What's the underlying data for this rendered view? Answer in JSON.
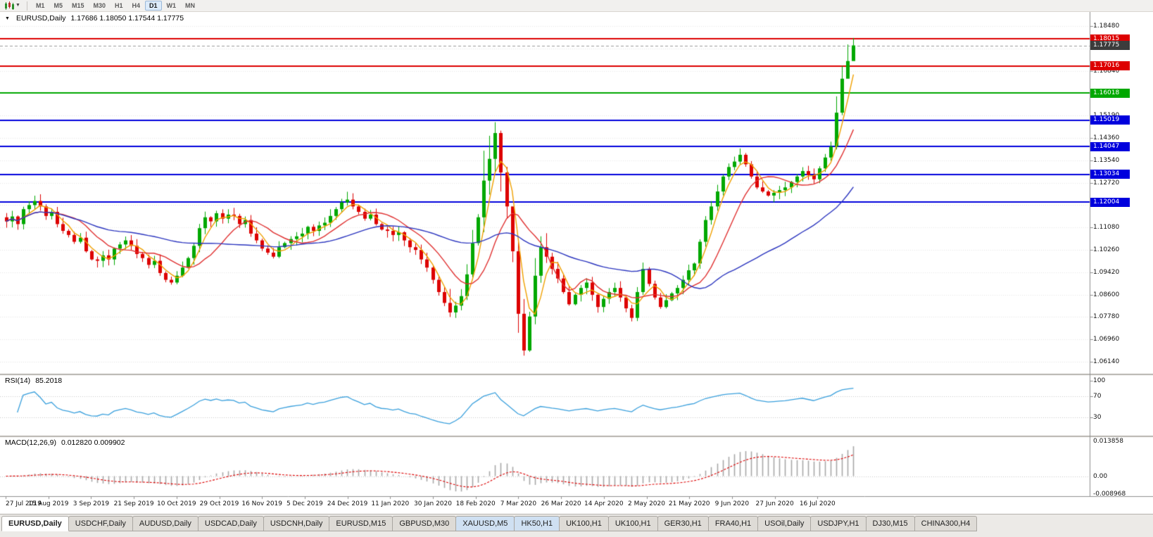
{
  "toolbar": {
    "timeframes": [
      {
        "label": "M1",
        "active": false
      },
      {
        "label": "M5",
        "active": false
      },
      {
        "label": "M15",
        "active": false
      },
      {
        "label": "M30",
        "active": false
      },
      {
        "label": "H1",
        "active": false
      },
      {
        "label": "H4",
        "active": false
      },
      {
        "label": "D1",
        "active": true
      },
      {
        "label": "W1",
        "active": false
      },
      {
        "label": "MN",
        "active": false
      }
    ]
  },
  "main_header": {
    "symbol": "EURUSD,Daily",
    "ohlc": "1.17686 1.18050 1.17544 1.17775"
  },
  "rsi_header": {
    "label": "RSI(14)",
    "value": "85.2018"
  },
  "macd_header": {
    "label": "MACD(12,26,9)",
    "value": "0.012820 0.009902"
  },
  "price_axis": {
    "labels": [
      "1.18480",
      "1.17660",
      "1.16840",
      "1.16020",
      "1.15190",
      "1.14360",
      "1.13540",
      "1.12720",
      "1.11900",
      "1.11080",
      "1.10260",
      "1.09420",
      "1.08600",
      "1.07780",
      "1.06960",
      "1.06140"
    ],
    "badges": [
      {
        "text": "1.18015",
        "value": 1.18015,
        "color": "#dd0000"
      },
      {
        "text": "1.17775",
        "value": 1.17775,
        "color": "#3c3c3c"
      },
      {
        "text": "1.17016",
        "value": 1.17016,
        "color": "#dd0000"
      },
      {
        "text": "1.16018",
        "value": 1.16018,
        "color": "#00a800"
      },
      {
        "text": "1.15019",
        "value": 1.15019,
        "color": "#0000dd"
      },
      {
        "text": "1.14047",
        "value": 1.14047,
        "color": "#0000dd"
      },
      {
        "text": "1.13034",
        "value": 1.13034,
        "color": "#0000dd"
      },
      {
        "text": "1.12004",
        "value": 1.12004,
        "color": "#0000dd"
      }
    ]
  },
  "rsi_axis": [
    "100",
    "70",
    "30"
  ],
  "macd_axis": {
    "top": "0.013858",
    "zero": "0.00",
    "bottom": "-0.008968"
  },
  "date_axis": [
    "27 Jul 2019",
    "15 Aug 2019",
    "3 Sep 2019",
    "21 Sep 2019",
    "10 Oct 2019",
    "29 Oct 2019",
    "16 Nov 2019",
    "5 Dec 2019",
    "24 Dec 2019",
    "11 Jan 2020",
    "30 Jan 2020",
    "18 Feb 2020",
    "7 Mar 2020",
    "26 Mar 2020",
    "14 Apr 2020",
    "2 May 2020",
    "21 May 2020",
    "9 Jun 2020",
    "27 Jun 2020",
    "16 Jul 2020"
  ],
  "tabs": [
    {
      "label": "EURUSD,Daily",
      "active": true
    },
    {
      "label": "USDCHF,Daily"
    },
    {
      "label": "AUDUSD,Daily"
    },
    {
      "label": "USDCAD,Daily"
    },
    {
      "label": "USDCNH,Daily"
    },
    {
      "label": "EURUSD,M15"
    },
    {
      "label": "GBPUSD,M30"
    },
    {
      "label": "XAUUSD,M5",
      "highlighted": true
    },
    {
      "label": "HK50,H1",
      "highlighted": true
    },
    {
      "label": "UK100,H1"
    },
    {
      "label": "UK100,H1"
    },
    {
      "label": "GER30,H1"
    },
    {
      "label": "FRA40,H1"
    },
    {
      "label": "USOil,Daily"
    },
    {
      "label": "USDJPY,H1"
    },
    {
      "label": "DJ30,M15"
    },
    {
      "label": "CHINA300,H4"
    }
  ],
  "chart_data": {
    "type": "candlestick",
    "symbol": "EURUSD",
    "timeframe": "Daily",
    "title": "EURUSD,Daily",
    "x_range": [
      "27 Jul 2019",
      "31 Jul 2020"
    ],
    "y_range": [
      1.0585,
      1.1885
    ],
    "ohlc_current": {
      "open": 1.17686,
      "high": 1.1805,
      "low": 1.17544,
      "close": 1.17775
    },
    "first_open": 1.1145,
    "closes": [
      1.113,
      1.1148,
      1.112,
      1.1175,
      1.119,
      1.1205,
      1.1185,
      1.115,
      1.1165,
      1.112,
      1.1095,
      1.108,
      1.1055,
      1.107,
      1.102,
      1.099,
      1.0985,
      1.1005,
      1.099,
      1.103,
      1.1045,
      1.106,
      1.104,
      1.101,
      1.0995,
      1.097,
      1.0985,
      1.094,
      1.0915,
      1.0905,
      1.093,
      1.096,
      1.0995,
      1.104,
      1.1105,
      1.1145,
      1.113,
      1.116,
      1.114,
      1.1155,
      1.115,
      1.112,
      1.1135,
      1.1085,
      1.106,
      1.103,
      1.1015,
      1.1,
      1.1035,
      1.105,
      1.1065,
      1.1075,
      1.1085,
      1.111,
      1.1095,
      1.1115,
      1.1125,
      1.115,
      1.1175,
      1.12,
      1.121,
      1.1185,
      1.1165,
      1.114,
      1.1155,
      1.112,
      1.11,
      1.1095,
      1.108,
      1.109,
      1.106,
      1.1035,
      1.1025,
      1.099,
      1.096,
      1.0915,
      1.087,
      1.083,
      1.0795,
      1.082,
      1.0855,
      1.0935,
      1.105,
      1.1145,
      1.128,
      1.136,
      1.1455,
      1.131,
      1.1185,
      1.102,
      1.079,
      1.0655,
      1.078,
      1.093,
      1.1035,
      1.1,
      1.0955,
      1.092,
      1.087,
      1.0825,
      1.086,
      1.0885,
      1.0905,
      1.086,
      1.0815,
      1.0845,
      1.087,
      1.0885,
      1.085,
      1.081,
      1.0775,
      1.087,
      1.0955,
      1.09,
      1.085,
      1.0815,
      1.084,
      1.0865,
      1.0885,
      1.0915,
      1.095,
      1.0975,
      1.1055,
      1.1135,
      1.1185,
      1.124,
      1.1295,
      1.133,
      1.135,
      1.1375,
      1.134,
      1.1295,
      1.1255,
      1.124,
      1.1225,
      1.1235,
      1.1245,
      1.1255,
      1.1275,
      1.1295,
      1.1315,
      1.13,
      1.1285,
      1.1325,
      1.1365,
      1.1405,
      1.153,
      1.1655,
      1.172,
      1.17775
    ],
    "wick_overrides": [
      {
        "i": 60,
        "h": 1.1239
      },
      {
        "i": 78,
        "l": 1.0778
      },
      {
        "i": 84,
        "h": 1.139
      },
      {
        "i": 85,
        "h": 1.1445
      },
      {
        "i": 86,
        "h": 1.1495
      },
      {
        "i": 87,
        "l": 1.124
      },
      {
        "i": 89,
        "h": 1.115
      },
      {
        "i": 90,
        "l": 1.072
      },
      {
        "i": 91,
        "l": 1.0636
      },
      {
        "i": 92,
        "l": 1.065
      },
      {
        "i": 93,
        "h": 1.0995
      },
      {
        "i": 146,
        "h": 1.159
      },
      {
        "i": 147,
        "h": 1.1702
      },
      {
        "i": 148,
        "h": 1.1781,
        "l": 1.1688
      },
      {
        "i": 149,
        "h": 1.1805,
        "l": 1.1754
      }
    ],
    "levels": [
      {
        "value": 1.18015,
        "color": "#dd0000"
      },
      {
        "value": 1.17016,
        "color": "#dd0000"
      },
      {
        "value": 1.16018,
        "color": "#00a800"
      },
      {
        "value": 1.15019,
        "color": "#0000dd"
      },
      {
        "value": 1.14047,
        "color": "#0000dd"
      },
      {
        "value": 1.13034,
        "color": "#0000dd"
      },
      {
        "value": 1.12004,
        "color": "#0000dd"
      }
    ],
    "current_price": 1.17775,
    "candle_up_color": "#00a800",
    "candle_down_color": "#dd0000",
    "moving_averages": [
      {
        "period": 4,
        "color": "#f0a000"
      },
      {
        "period": 10,
        "color": "#e03030"
      },
      {
        "period": 34,
        "color": "#2b35bf"
      }
    ],
    "rsi": {
      "period": 14,
      "current": 85.2018,
      "levels": [
        70,
        30
      ],
      "color": "#3aa0dd"
    },
    "macd": {
      "fast": 12,
      "slow": 26,
      "signal": 9,
      "main": 0.01282,
      "signal_value": 0.009902,
      "histogram_color": "#a8a8a8",
      "signal_color": "#dd0000"
    }
  }
}
